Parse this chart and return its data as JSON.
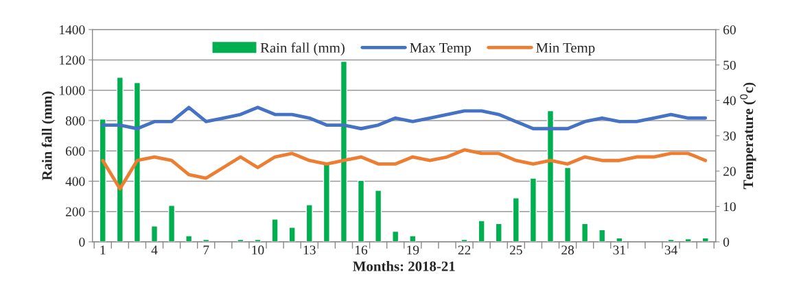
{
  "chart_data": {
    "type": "bar",
    "xlabel": "Months: 2018-21",
    "ylabel": "Rain fall (mm)",
    "y2label": "Temperature ($^{0}$c)",
    "categories": [
      "1",
      null,
      null,
      "4",
      null,
      null,
      "7",
      null,
      null,
      "10",
      null,
      null,
      "13",
      null,
      null,
      "16",
      null,
      null,
      "19",
      null,
      null,
      "22",
      null,
      null,
      "25",
      null,
      null,
      "28",
      null,
      null,
      "31",
      null,
      null,
      "34",
      null,
      null
    ],
    "series": [
      {
        "name": "Rain fall (mm)",
        "color": "#00b050",
        "values": [
          810,
          1085,
          1050,
          105,
          240,
          40,
          15,
          null,
          15,
          15,
          150,
          95,
          245,
          520,
          1190,
          405,
          340,
          70,
          40,
          null,
          null,
          15,
          140,
          120,
          290,
          420,
          865,
          490,
          120,
          80,
          25,
          null,
          null,
          15,
          20,
          25
        ]
      },
      {
        "name": "Max Temp",
        "type": "line",
        "axis": "y2",
        "color": "#4472c4",
        "values": [
          33,
          33,
          32,
          34,
          34,
          38,
          34,
          35,
          36,
          38,
          36,
          36,
          35,
          33,
          33,
          32,
          33,
          35,
          34,
          35,
          36,
          37,
          37,
          36,
          34,
          32,
          32,
          32,
          34,
          35,
          34,
          34,
          35,
          36,
          35,
          35
        ]
      },
      {
        "name": "Min Temp",
        "type": "line",
        "axis": "y2",
        "color": "#ed7d31",
        "values": [
          23,
          15,
          23,
          24,
          23,
          19,
          18,
          21,
          24,
          21,
          24,
          25,
          23,
          22,
          23,
          24,
          22,
          22,
          24,
          23,
          24,
          26,
          25,
          25,
          23,
          22,
          23,
          22,
          24,
          23,
          23,
          24,
          24,
          25,
          25,
          23
        ]
      }
    ],
    "ylim": [
      0,
      1400
    ],
    "yticks": [
      0,
      200,
      400,
      600,
      800,
      1000,
      1200,
      1400
    ],
    "y2lim": [
      0,
      60
    ],
    "y2ticks": [
      0,
      10,
      20,
      30,
      40,
      50,
      60
    ],
    "grid": "y",
    "legend": "top",
    "marker": "none",
    "line_style": "solid"
  }
}
